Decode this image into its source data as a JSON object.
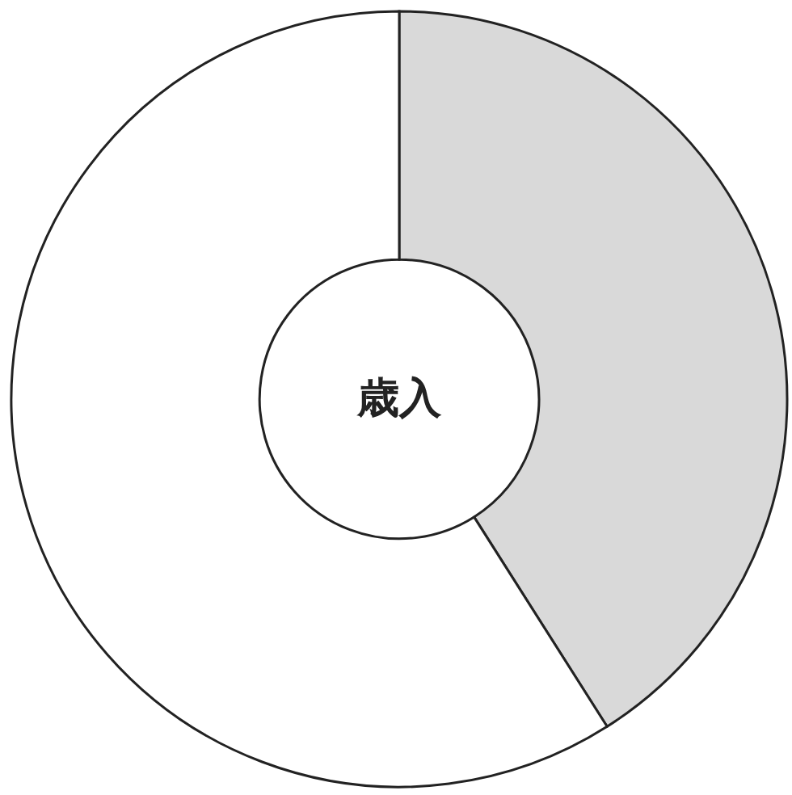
{
  "chart_data": {
    "type": "donut",
    "title": "歳入",
    "categories": [
      null,
      null
    ],
    "values": [
      41,
      59
    ],
    "colors": [
      "#d9d9d9",
      "#ffffff"
    ]
  }
}
